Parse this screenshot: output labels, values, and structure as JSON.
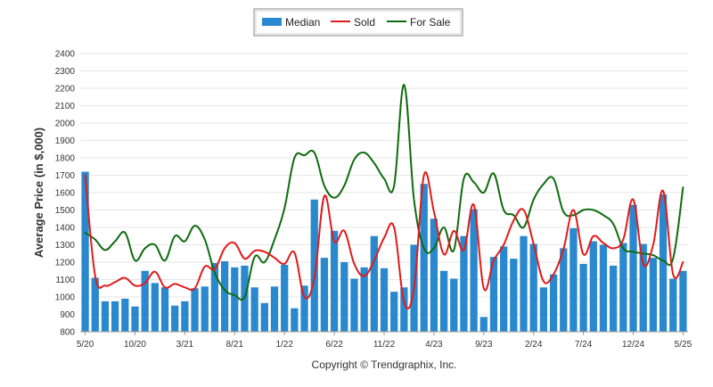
{
  "chart_data": {
    "type": "bar",
    "title": "",
    "xlabel": "",
    "ylabel": "Average Price (in $,000)",
    "ylim": [
      800,
      2400
    ],
    "yticks": [
      800,
      900,
      1000,
      1100,
      1200,
      1300,
      1400,
      1500,
      1600,
      1700,
      1800,
      1900,
      2000,
      2100,
      2200,
      2300,
      2400
    ],
    "grid": true,
    "legend_position": "top-center",
    "categories": [
      "5/20",
      "6/20",
      "7/20",
      "8/20",
      "9/20",
      "10/20",
      "11/20",
      "12/20",
      "1/21",
      "2/21",
      "3/21",
      "4/21",
      "5/21",
      "6/21",
      "7/21",
      "8/21",
      "9/21",
      "10/21",
      "11/21",
      "12/21",
      "1/22",
      "2/22",
      "3/22",
      "4/22",
      "5/22",
      "6/22",
      "7/22",
      "8/22",
      "9/22",
      "10/22",
      "11/22",
      "12/22",
      "1/23",
      "2/23",
      "3/23",
      "4/23",
      "5/23",
      "6/23",
      "7/23",
      "8/23",
      "9/23",
      "10/23",
      "11/23",
      "12/23",
      "1/24",
      "2/24",
      "3/24",
      "4/24",
      "5/24",
      "6/24",
      "7/24",
      "8/24",
      "9/24",
      "10/24",
      "11/24",
      "12/24",
      "1/25",
      "2/25",
      "3/25",
      "4/25",
      "5/25"
    ],
    "xtick_labels": [
      "5/20",
      "10/20",
      "3/21",
      "8/21",
      "1/22",
      "6/22",
      "11/22",
      "4/23",
      "9/23",
      "2/24",
      "7/24",
      "12/24",
      "5/25"
    ],
    "series": [
      {
        "name": "Median",
        "kind": "bar",
        "color": "#2a88cf",
        "values": [
          1720,
          1110,
          975,
          975,
          990,
          945,
          1150,
          1080,
          1055,
          950,
          975,
          1050,
          1060,
          1195,
          1205,
          1170,
          1180,
          1055,
          965,
          1060,
          1185,
          935,
          1065,
          1560,
          1225,
          1380,
          1200,
          1105,
          1170,
          1350,
          1165,
          1030,
          1055,
          1300,
          1650,
          1450,
          1150,
          1105,
          1350,
          1505,
          885,
          1230,
          1290,
          1220,
          1350,
          1305,
          1055,
          1130,
          1280,
          1395,
          1190,
          1320,
          1300,
          1180,
          1310,
          1530,
          1305,
          1225,
          1590,
          1105,
          1150
        ]
      },
      {
        "name": "Sold",
        "kind": "line",
        "color": "#e01b1b",
        "values": [
          1700,
          1120,
          1065,
          1085,
          1110,
          1065,
          1080,
          1145,
          1055,
          1075,
          1055,
          1050,
          1175,
          1160,
          1280,
          1310,
          1220,
          1265,
          1260,
          1225,
          1190,
          1255,
          1000,
          1110,
          1580,
          1320,
          1380,
          1190,
          1120,
          1210,
          1340,
          1400,
          970,
          1050,
          1700,
          1490,
          1245,
          1380,
          1270,
          1530,
          1050,
          1210,
          1300,
          1440,
          1500,
          1305,
          1090,
          1130,
          1275,
          1500,
          1245,
          1350,
          1310,
          1280,
          1330,
          1560,
          1190,
          1300,
          1610,
          1130,
          1200
        ]
      },
      {
        "name": "For Sale",
        "kind": "line",
        "color": "#0f6b0f",
        "values": [
          1370,
          1330,
          1270,
          1320,
          1370,
          1210,
          1280,
          1300,
          1210,
          1350,
          1320,
          1410,
          1330,
          1140,
          1040,
          1010,
          1000,
          1230,
          1200,
          1330,
          1510,
          1800,
          1815,
          1830,
          1640,
          1570,
          1640,
          1790,
          1830,
          1770,
          1680,
          1640,
          2220,
          1560,
          1280,
          1280,
          1400,
          1270,
          1680,
          1660,
          1600,
          1710,
          1500,
          1470,
          1400,
          1560,
          1650,
          1680,
          1490,
          1470,
          1500,
          1500,
          1470,
          1420,
          1280,
          1260,
          1250,
          1240,
          1210,
          1220,
          1630
        ]
      }
    ]
  },
  "legend": {
    "median_label": "Median",
    "sold_label": "Sold",
    "forsale_label": "For Sale"
  },
  "footer": {
    "copyright": "Copyright © Trendgraphix, Inc."
  },
  "colors": {
    "median": "#2a88cf",
    "sold": "#e01b1b",
    "for_sale": "#0f6b0f",
    "grid": "#e6e6e6"
  }
}
